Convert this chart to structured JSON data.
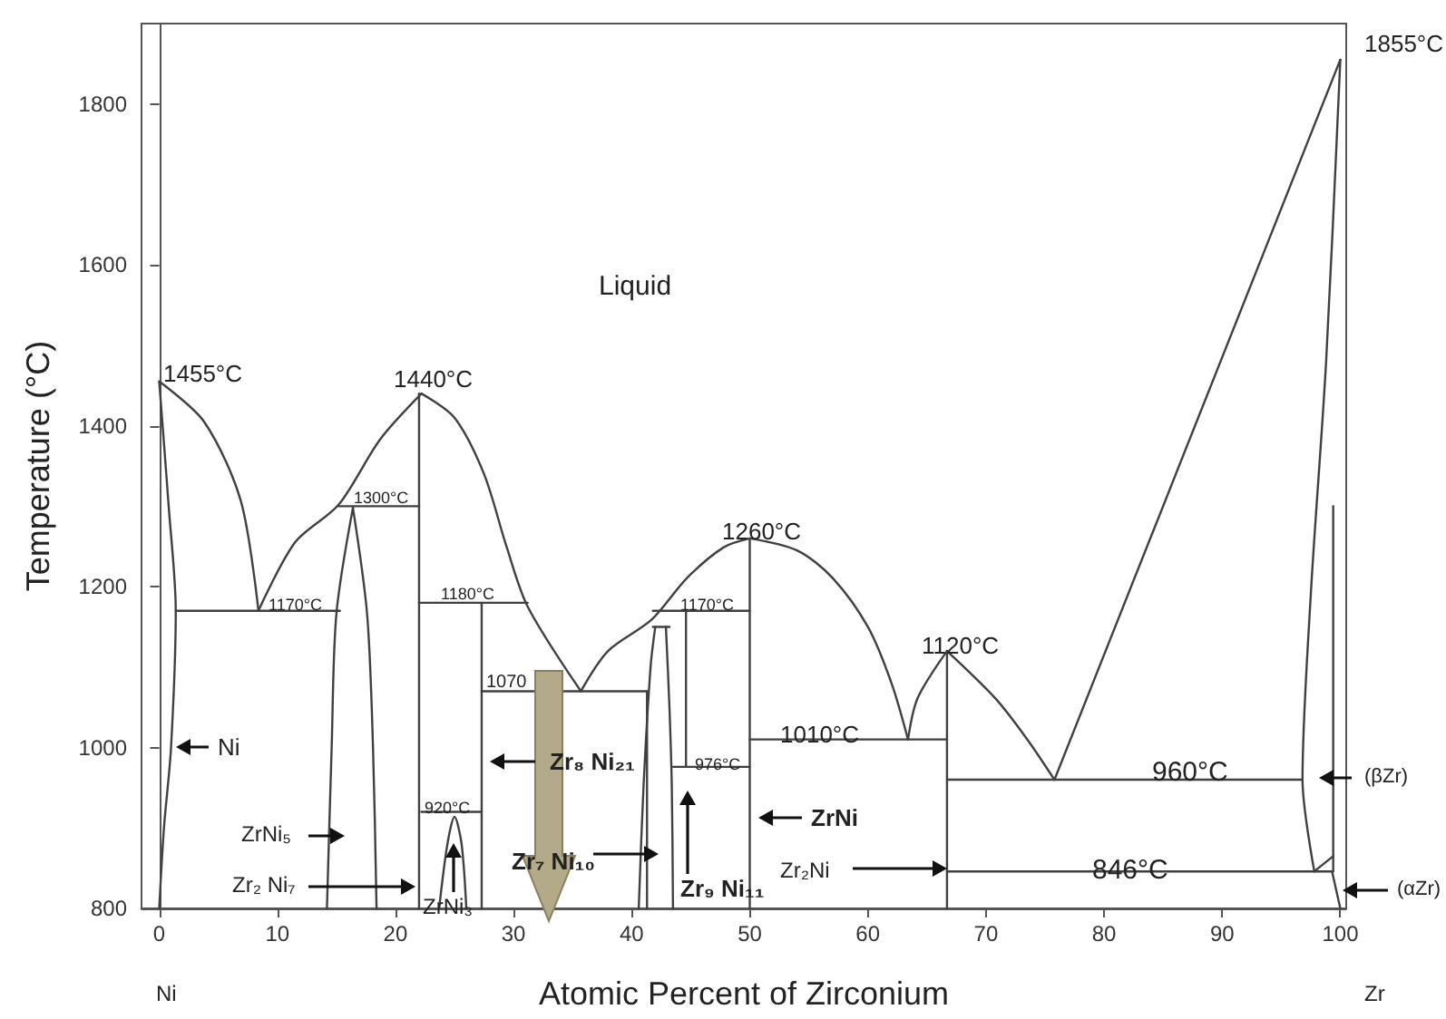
{
  "chart_data": {
    "type": "line",
    "xlabel": "Atomic Percent of Zirconium",
    "ylabel": "Temperature (°C)",
    "xlim": [
      -1.5,
      100.5
    ],
    "ylim": [
      800,
      1900
    ],
    "xticks": [
      0,
      10,
      20,
      30,
      40,
      50,
      60,
      70,
      80,
      90,
      100
    ],
    "yticks": [
      800,
      1000,
      1200,
      1400,
      1600,
      1800
    ],
    "marker": "none",
    "line_style": "solid",
    "series": [
      {
        "color": "#404040",
        "x": [
          0,
          3.8,
          6.9,
          8.4
        ],
        "values": [
          1455,
          1405,
          1307,
          1170
        ]
      },
      {
        "color": "#404040",
        "x": [
          0,
          0.8,
          1.4,
          1.0,
          0.4,
          0
        ],
        "values": [
          1455,
          1300,
          1170,
          1000,
          900,
          800
        ]
      },
      {
        "color": "#404040",
        "x": [
          1.4,
          15.3
        ],
        "values": [
          1170,
          1170
        ]
      },
      {
        "color": "#404040",
        "x": [
          8.4,
          11.5,
          15.2,
          18.7,
          22.2
        ],
        "values": [
          1170,
          1255,
          1302,
          1383,
          1440
        ]
      },
      {
        "color": "#404040",
        "x": [
          15.2,
          22
        ],
        "values": [
          1300,
          1300
        ]
      },
      {
        "color": "#404040",
        "x": [
          14.2,
          14.6,
          15,
          16.4
        ],
        "values": [
          800,
          1000,
          1166,
          1298
        ]
      },
      {
        "color": "#404040",
        "x": [
          16.4,
          17.6,
          18.1,
          18.4
        ],
        "values": [
          1298,
          1166,
          1000,
          800
        ]
      },
      {
        "color": "#404040",
        "x": [
          22,
          22
        ],
        "values": [
          800,
          1440
        ]
      },
      {
        "color": "#404040",
        "x": [
          22.2,
          25,
          27.5,
          29.4,
          31.2,
          35.7
        ],
        "values": [
          1440,
          1410,
          1340,
          1250,
          1175,
          1070
        ]
      },
      {
        "color": "#404040",
        "x": [
          22,
          31.2
        ],
        "values": [
          1180,
          1180
        ]
      },
      {
        "color": "#404040",
        "x": [
          27.3,
          27.3
        ],
        "values": [
          800,
          1180
        ]
      },
      {
        "color": "#404040",
        "x": [
          23.7,
          24.4,
          25,
          25.6,
          26
        ],
        "values": [
          800,
          880,
          914,
          880,
          800
        ]
      },
      {
        "color": "#404040",
        "x": [
          22.2,
          27.3
        ],
        "values": [
          920,
          920
        ]
      },
      {
        "color": "#404040",
        "x": [
          27.3,
          41.3
        ],
        "values": [
          1070,
          1070
        ]
      },
      {
        "color": "#404040",
        "x": [
          41.3,
          41.3
        ],
        "values": [
          800,
          1070
        ]
      },
      {
        "color": "#404040",
        "x": [
          35.7,
          38,
          41.7,
          44.7,
          47.8,
          50
        ],
        "values": [
          1070,
          1120,
          1159,
          1211,
          1249,
          1260
        ]
      },
      {
        "color": "#404040",
        "x": [
          40.6,
          41,
          41.6,
          42
        ],
        "values": [
          800,
          950,
          1100,
          1150
        ]
      },
      {
        "color": "#404040",
        "x": [
          42.9,
          43.2,
          43.4,
          43.5
        ],
        "values": [
          1150,
          1050,
          950,
          800
        ]
      },
      {
        "color": "#404040",
        "x": [
          41.8,
          43.2
        ],
        "values": [
          1150,
          1150
        ]
      },
      {
        "color": "#404040",
        "x": [
          41.8,
          50
        ],
        "values": [
          1170,
          1170
        ]
      },
      {
        "color": "#404040",
        "x": [
          44.6,
          44.6
        ],
        "values": [
          976,
          1170
        ]
      },
      {
        "color": "#404040",
        "x": [
          43.5,
          50
        ],
        "values": [
          976,
          976
        ]
      },
      {
        "color": "#404040",
        "x": [
          50,
          50
        ],
        "values": [
          800,
          1260
        ]
      },
      {
        "color": "#404040",
        "x": [
          50,
          54,
          57,
          60,
          62,
          63.4
        ],
        "values": [
          1260,
          1245,
          1211,
          1150,
          1080,
          1010
        ]
      },
      {
        "color": "#404040",
        "x": [
          50,
          66.7
        ],
        "values": [
          1010,
          1010
        ]
      },
      {
        "color": "#404040",
        "x": [
          63.4,
          64.2,
          66.7
        ],
        "values": [
          1010,
          1061,
          1120
        ]
      },
      {
        "color": "#404040",
        "x": [
          66.7,
          66.7
        ],
        "values": [
          800,
          1120
        ]
      },
      {
        "color": "#404040",
        "x": [
          66.7,
          70.8,
          73.5,
          75.8
        ],
        "values": [
          1120,
          1061,
          1010,
          960
        ]
      },
      {
        "color": "#404040",
        "x": [
          66.7,
          96.8
        ],
        "values": [
          960,
          960
        ]
      },
      {
        "color": "#404040",
        "x": [
          75.8,
          100
        ],
        "values": [
          960,
          1855
        ]
      },
      {
        "color": "#404040",
        "x": [
          100,
          98.8,
          97.5,
          96.8,
          97.8
        ],
        "values": [
          1855,
          1480,
          1190,
          960,
          846
        ]
      },
      {
        "color": "#404040",
        "x": [
          99.4,
          99.4
        ],
        "values": [
          846,
          1300
        ]
      },
      {
        "color": "#404040",
        "x": [
          97.8,
          99.4
        ],
        "values": [
          846,
          865
        ]
      },
      {
        "color": "#404040",
        "x": [
          99.3,
          100
        ],
        "values": [
          846,
          800
        ]
      },
      {
        "color": "#404040",
        "x": [
          66.7,
          99.3
        ],
        "values": [
          846,
          846
        ]
      }
    ],
    "annotations": [
      "Liquid",
      "1455°C",
      "1440°C",
      "1855°C",
      "1300°C",
      "1170°C",
      "1180°C",
      "1070",
      "920°C",
      "1260°C",
      "1170°C",
      "976°C",
      "1010°C",
      "1120°C",
      "960°C",
      "846°C",
      "Ni",
      "ZrNi₅",
      "Zr₂ Ni₇",
      "ZrNi₃",
      "Zr₈ Ni₂₁",
      "Zr₇ Ni₁₀",
      "Zr₉ Ni₁₁",
      "ZrNi",
      "Zr₂Ni",
      "(βZr)",
      "(αZr)",
      "Ni",
      "Zr"
    ]
  }
}
